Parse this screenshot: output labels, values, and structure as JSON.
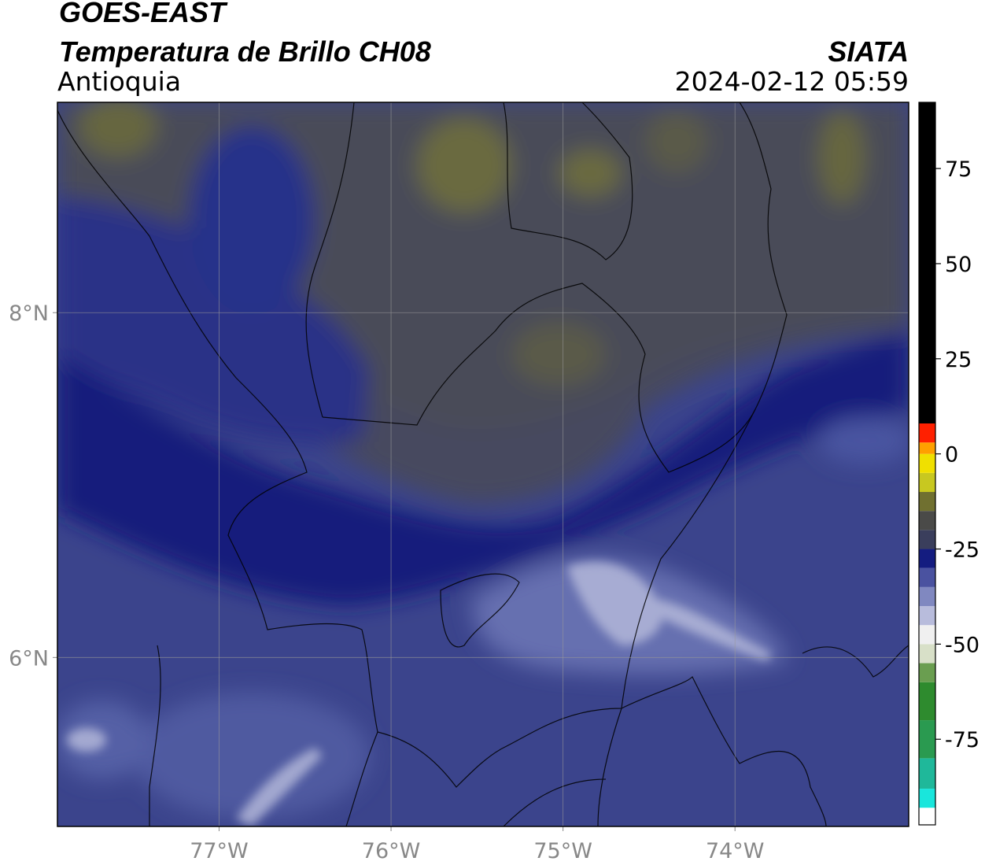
{
  "header": {
    "satellite": "GOES-EAST",
    "product": "Temperatura de Brillo CH08",
    "region": "Antioquia",
    "agency": "SIATA",
    "datetime": "2024-02-12 05:59"
  },
  "map": {
    "xlim": [
      -77.94,
      -72.99
    ],
    "ylim": [
      5.02,
      9.22
    ],
    "grid": true,
    "xticks": [
      {
        "value": -77,
        "label": "77°W"
      },
      {
        "value": -76,
        "label": "76°W"
      },
      {
        "value": -75,
        "label": "75°W"
      },
      {
        "value": -74,
        "label": "74°W"
      }
    ],
    "yticks": [
      {
        "value": 8,
        "label": "8°N"
      },
      {
        "value": 6,
        "label": "6°N"
      }
    ]
  },
  "colorbar": {
    "clim": [
      -97.5,
      92.4
    ],
    "ticks": [
      75,
      50,
      25,
      0,
      -25,
      -50,
      -75
    ],
    "segments": [
      {
        "from": -97.5,
        "to": -93,
        "color": "#ffffff"
      },
      {
        "from": -93,
        "to": -88,
        "color": "#19e6dc"
      },
      {
        "from": -88,
        "to": -80,
        "color": "#1fb89a"
      },
      {
        "from": -80,
        "to": -70,
        "color": "#2a9a50"
      },
      {
        "from": -70,
        "to": -60,
        "color": "#2e8b2e"
      },
      {
        "from": -60,
        "to": -55,
        "color": "#6a9e50"
      },
      {
        "from": -55,
        "to": -50,
        "color": "#d8e0c8"
      },
      {
        "from": -50,
        "to": -45,
        "color": "#f0f0f0"
      },
      {
        "from": -45,
        "to": -40,
        "color": "#b8bcdc"
      },
      {
        "from": -40,
        "to": -35,
        "color": "#8088c0"
      },
      {
        "from": -35,
        "to": -30,
        "color": "#4a52a0"
      },
      {
        "from": -30,
        "to": -25,
        "color": "#141c80"
      },
      {
        "from": -25,
        "to": -20,
        "color": "#3a3e5c"
      },
      {
        "from": -20,
        "to": -15,
        "color": "#4a4a48"
      },
      {
        "from": -15,
        "to": -10,
        "color": "#707030"
      },
      {
        "from": -10,
        "to": -5,
        "color": "#c8c820"
      },
      {
        "from": -5,
        "to": 0,
        "color": "#f0e000"
      },
      {
        "from": 0,
        "to": 3,
        "color": "#ffa000"
      },
      {
        "from": 3,
        "to": 8,
        "color": "#ff2000"
      },
      {
        "from": 8,
        "to": 92.4,
        "color": "#000000"
      }
    ]
  }
}
